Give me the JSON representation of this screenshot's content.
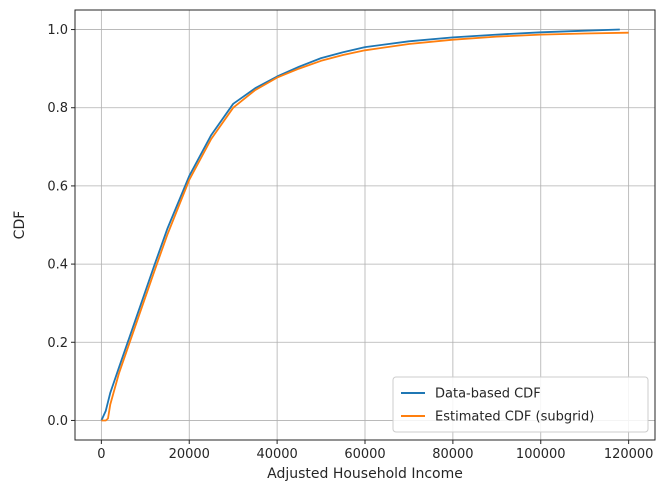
{
  "chart_data": {
    "type": "line",
    "title": "",
    "xlabel": "Adjusted Household Income",
    "ylabel": "CDF",
    "xlim": [
      -6000,
      126000
    ],
    "ylim": [
      -0.05,
      1.05
    ],
    "xticks": [
      0,
      20000,
      40000,
      60000,
      80000,
      100000,
      120000
    ],
    "xtick_labels": [
      "0",
      "20000",
      "40000",
      "60000",
      "80000",
      "100000",
      "120000"
    ],
    "yticks": [
      0.0,
      0.2,
      0.4,
      0.6,
      0.8,
      1.0
    ],
    "ytick_labels": [
      "0.0",
      "0.2",
      "0.4",
      "0.6",
      "0.8",
      "1.0"
    ],
    "grid": true,
    "legend_position": "lower-right",
    "series": [
      {
        "name": "Data-based CDF",
        "color": "#1f77b4",
        "x": [
          0,
          1000,
          2000,
          4000,
          6000,
          8000,
          10000,
          12000,
          15000,
          20000,
          25000,
          30000,
          35000,
          40000,
          45000,
          50000,
          55000,
          60000,
          70000,
          80000,
          90000,
          100000,
          110000,
          118000
        ],
        "y": [
          0.0,
          0.025,
          0.07,
          0.135,
          0.2,
          0.265,
          0.33,
          0.395,
          0.49,
          0.625,
          0.73,
          0.81,
          0.85,
          0.88,
          0.905,
          0.927,
          0.942,
          0.955,
          0.97,
          0.98,
          0.987,
          0.993,
          0.997,
          1.0
        ]
      },
      {
        "name": "Estimated CDF (subgrid)",
        "color": "#ff7f0e",
        "x": [
          0,
          1000,
          1500,
          2000,
          4000,
          6000,
          8000,
          10000,
          12000,
          15000,
          20000,
          25000,
          30000,
          35000,
          40000,
          45000,
          50000,
          55000,
          60000,
          70000,
          80000,
          90000,
          100000,
          110000,
          120000
        ],
        "y": [
          0.0,
          0.0,
          0.005,
          0.04,
          0.12,
          0.185,
          0.25,
          0.315,
          0.38,
          0.475,
          0.615,
          0.72,
          0.8,
          0.845,
          0.877,
          0.9,
          0.92,
          0.935,
          0.947,
          0.963,
          0.974,
          0.982,
          0.987,
          0.99,
          0.992
        ]
      }
    ]
  }
}
